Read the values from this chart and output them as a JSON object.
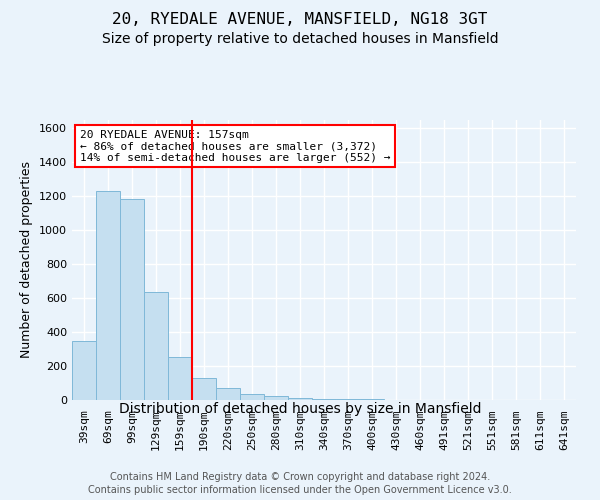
{
  "title": "20, RYEDALE AVENUE, MANSFIELD, NG18 3GT",
  "subtitle": "Size of property relative to detached houses in Mansfield",
  "xlabel": "Distribution of detached houses by size in Mansfield",
  "ylabel": "Number of detached properties",
  "categories": [
    "39sqm",
    "69sqm",
    "99sqm",
    "129sqm",
    "159sqm",
    "190sqm",
    "220sqm",
    "250sqm",
    "280sqm",
    "310sqm",
    "340sqm",
    "370sqm",
    "400sqm",
    "430sqm",
    "460sqm",
    "491sqm",
    "521sqm",
    "551sqm",
    "581sqm",
    "611sqm",
    "641sqm"
  ],
  "values": [
    350,
    1230,
    1185,
    635,
    255,
    130,
    70,
    38,
    22,
    12,
    8,
    5,
    4,
    2,
    1,
    0,
    0,
    0,
    0,
    0,
    0
  ],
  "bar_color": "#C5DFF0",
  "bar_edge_color": "#7FB8D8",
  "red_line_index": 4,
  "annotation_text": "20 RYEDALE AVENUE: 157sqm\n← 86% of detached houses are smaller (3,372)\n14% of semi-detached houses are larger (552) →",
  "ylim": [
    0,
    1650
  ],
  "yticks": [
    0,
    200,
    400,
    600,
    800,
    1000,
    1200,
    1400,
    1600
  ],
  "footer1": "Contains HM Land Registry data © Crown copyright and database right 2024.",
  "footer2": "Contains public sector information licensed under the Open Government Licence v3.0.",
  "background_color": "#EAF3FB",
  "grid_color": "#FFFFFF",
  "title_fontsize": 11.5,
  "subtitle_fontsize": 10,
  "xlabel_fontsize": 10,
  "ylabel_fontsize": 9,
  "tick_fontsize": 8,
  "annot_fontsize": 8,
  "footer_fontsize": 7
}
